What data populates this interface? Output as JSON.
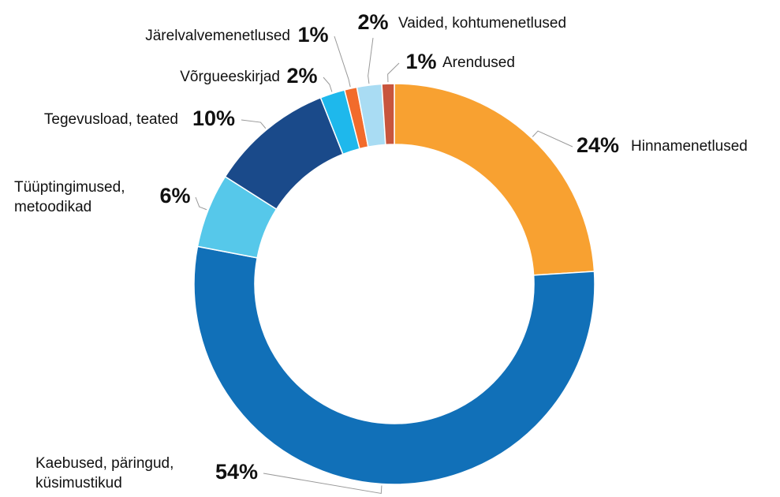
{
  "chart_data": {
    "type": "donut",
    "categories": [
      "Hinnamenetlused",
      "Kaebused, päringud, küsimustikud",
      "Tüüptingimused, metoodikad",
      "Tegevusload, teated",
      "Võrgueeskirjad",
      "Järelvalvemenetlused",
      "Vaided, kohtumenetlused",
      "Arendused"
    ],
    "values": [
      24,
      54,
      6,
      10,
      2,
      1,
      2,
      1
    ],
    "value_labels": [
      "24%",
      "54%",
      "6%",
      "10%",
      "2%",
      "1%",
      "2%",
      "1%"
    ],
    "colors": [
      "#f8a131",
      "#1170b8",
      "#56c8ea",
      "#1a4a8a",
      "#1eb8ec",
      "#f26b2b",
      "#a9dcf3",
      "#c8553d"
    ]
  }
}
